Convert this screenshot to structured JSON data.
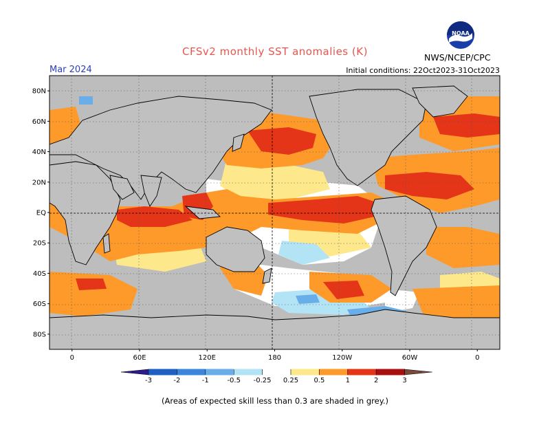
{
  "header": {
    "title": "CFSv2 monthly SST anomalies (K)",
    "month": "Mar 2024",
    "organization": "NWS/NCEP/CPC",
    "initial_conditions": "Initial conditions: 22Oct2023-31Oct2023",
    "logo_text": "NOAA"
  },
  "map": {
    "lat_labels": [
      "80N",
      "60N",
      "40N",
      "20N",
      "EQ",
      "20S",
      "40S",
      "60S",
      "80S"
    ],
    "lon_labels": [
      "0",
      "60E",
      "120E",
      "180",
      "120W",
      "60W",
      "0"
    ],
    "lon_range": [
      -20,
      380
    ],
    "lat_range": [
      -90,
      90
    ],
    "grid": "dotted"
  },
  "colorbar": {
    "labels": [
      "-3",
      "-2",
      "-1",
      "-0.5",
      "-0.25",
      "0.25",
      "0.5",
      "1",
      "2",
      "3"
    ],
    "colors": {
      "below_-3": "#2b1b8c",
      "-3_-2": "#1f5fc2",
      "-2_-1": "#3b85dd",
      "-1_-0.5": "#6aaee9",
      "-0.5_-0.25": "#b3e4f6",
      "-0.25_0.25": "#ffffff",
      "0.25_0.5": "#fde98c",
      "0.5_1": "#fd9a2a",
      "1_2": "#e53518",
      "2_3": "#a81010",
      "above_3": "#7a4a3a"
    },
    "land_color": "#c0c0c0",
    "grey_color": "#bdbdbd"
  },
  "footer": {
    "note": "(Areas of expected skill less than 0.3 are shaded in grey.)"
  }
}
